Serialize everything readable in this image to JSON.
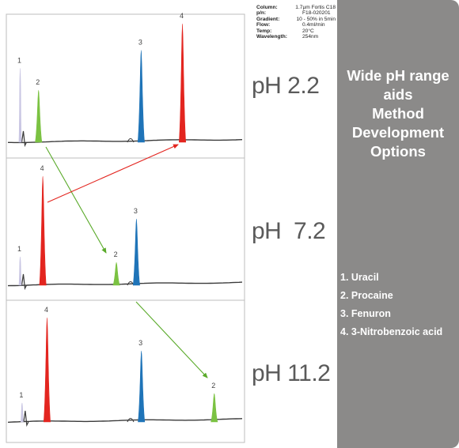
{
  "conditions": [
    {
      "key": "Column:",
      "value": "1.7µm Fortis C18"
    },
    {
      "key": "p/n:",
      "value": "F18-020201"
    },
    {
      "key": "Gradient:",
      "value": "10 - 50% in 5min"
    },
    {
      "key": "Flow:",
      "value": "0.4ml/min"
    },
    {
      "key": "Temp:",
      "value": "20°C"
    },
    {
      "key": "Wavelength:",
      "value": "254nm"
    }
  ],
  "panel": {
    "title_lines": [
      "Wide pH range",
      "aids",
      "Method",
      "Development",
      "Options"
    ],
    "legend": [
      "1. Uracil",
      "2. Procaine",
      "3. Fenuron",
      "4. 3-Nitrobenzoic acid"
    ]
  },
  "colors": {
    "uracil": "#c9c6e3",
    "procaine": "#7bc242",
    "fenuron": "#1f74b8",
    "nitrobenzoic": "#e3251f",
    "baseline": "#3a3a3a",
    "arrow_green": "#5aaa2a",
    "arrow_red": "#e3251f",
    "panel_bg": "#8b8a89"
  },
  "chart_data": [
    {
      "type": "line",
      "ph_label": "pH 2.2",
      "peaks": [
        {
          "label": "1",
          "compound": "Uracil",
          "color": "#c9c6e3",
          "x": 0.052,
          "height": 0.78
        },
        {
          "label": "2",
          "compound": "Procaine",
          "color": "#7bc242",
          "x": 0.13,
          "height": 0.55
        },
        {
          "label": "3",
          "compound": "Fenuron",
          "color": "#1f74b8",
          "x": 0.565,
          "height": 0.97
        },
        {
          "label": "4",
          "compound": "3-Nitrobenzoic acid",
          "color": "#e3251f",
          "x": 0.74,
          "height": 1.25
        }
      ]
    },
    {
      "type": "line",
      "ph_label": "pH  7.2",
      "peaks": [
        {
          "label": "1",
          "compound": "Uracil",
          "color": "#c9c6e3",
          "x": 0.052,
          "height": 0.3
        },
        {
          "label": "2",
          "compound": "Procaine",
          "color": "#7bc242",
          "x": 0.46,
          "height": 0.24
        },
        {
          "label": "3",
          "compound": "Fenuron",
          "color": "#1f74b8",
          "x": 0.545,
          "height": 0.7
        },
        {
          "label": "4",
          "compound": "3-Nitrobenzoic acid",
          "color": "#e3251f",
          "x": 0.148,
          "height": 1.15
        }
      ]
    },
    {
      "type": "line",
      "ph_label": "pH 11.2",
      "peaks": [
        {
          "label": "1",
          "compound": "Uracil",
          "color": "#c9c6e3",
          "x": 0.06,
          "height": 0.2
        },
        {
          "label": "2",
          "compound": "Procaine",
          "color": "#7bc242",
          "x": 0.875,
          "height": 0.3
        },
        {
          "label": "3",
          "compound": "Fenuron",
          "color": "#1f74b8",
          "x": 0.566,
          "height": 0.75
        },
        {
          "label": "4",
          "compound": "3-Nitrobenzoic acid",
          "color": "#e3251f",
          "x": 0.166,
          "height": 1.1
        }
      ]
    }
  ]
}
